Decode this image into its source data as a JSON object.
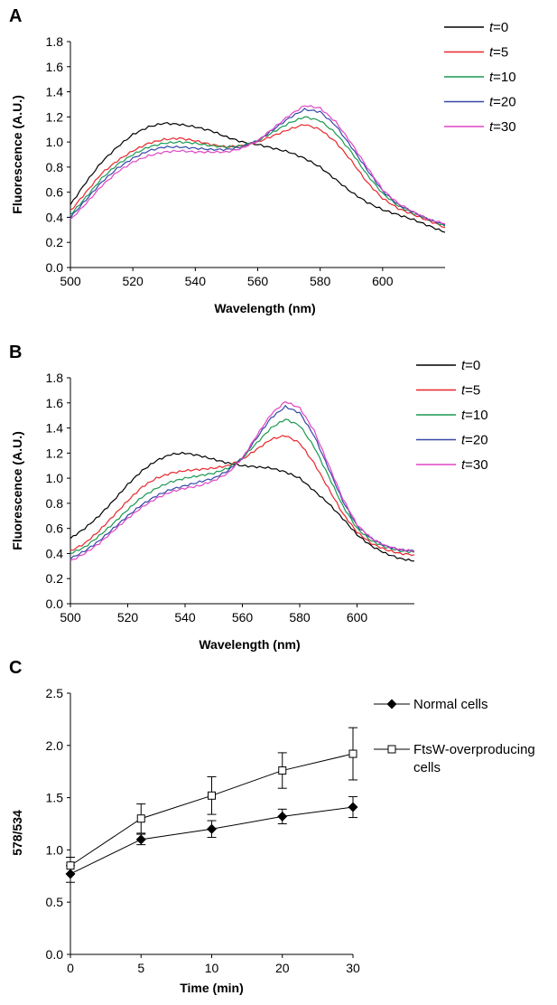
{
  "chart_data": [
    {
      "panel": "A",
      "type": "line",
      "xlabel": "Wavelength (nm)",
      "ylabel": "Fluorescence (A.U.)",
      "xlim": [
        500,
        620
      ],
      "ylim": [
        0,
        1.8
      ],
      "xticks": [
        500,
        520,
        540,
        560,
        580,
        600
      ],
      "yticks": [
        0.0,
        0.2,
        0.4,
        0.6,
        0.8,
        1.0,
        1.2,
        1.4,
        1.6,
        1.8
      ],
      "legend_position": "right",
      "x": [
        500,
        505,
        510,
        515,
        520,
        525,
        530,
        535,
        540,
        545,
        550,
        555,
        560,
        565,
        570,
        575,
        580,
        585,
        590,
        595,
        600,
        605,
        610,
        615,
        620
      ],
      "series": [
        {
          "label_prefix": "t",
          "label_value": "=0",
          "color": "#000000",
          "values": [
            0.5,
            0.68,
            0.84,
            0.96,
            1.06,
            1.12,
            1.15,
            1.14,
            1.12,
            1.09,
            1.04,
            1.0,
            0.98,
            0.95,
            0.92,
            0.87,
            0.8,
            0.7,
            0.6,
            0.52,
            0.46,
            0.42,
            0.38,
            0.33,
            0.28
          ]
        },
        {
          "label_prefix": "t",
          "label_value": "=5",
          "color": "#e8262b",
          "values": [
            0.45,
            0.6,
            0.75,
            0.85,
            0.93,
            0.99,
            1.02,
            1.03,
            1.01,
            0.98,
            0.96,
            0.97,
            1.0,
            1.05,
            1.1,
            1.14,
            1.1,
            1.0,
            0.85,
            0.68,
            0.55,
            0.47,
            0.42,
            0.37,
            0.32
          ]
        },
        {
          "label_prefix": "t",
          "label_value": "=10",
          "color": "#1a9850",
          "values": [
            0.42,
            0.56,
            0.71,
            0.82,
            0.9,
            0.96,
            0.99,
            1.0,
            0.99,
            0.97,
            0.96,
            0.97,
            1.01,
            1.08,
            1.15,
            1.2,
            1.17,
            1.07,
            0.92,
            0.74,
            0.59,
            0.49,
            0.43,
            0.38,
            0.33
          ]
        },
        {
          "label_prefix": "t",
          "label_value": "=20",
          "color": "#3548a8",
          "values": [
            0.4,
            0.54,
            0.68,
            0.79,
            0.87,
            0.93,
            0.96,
            0.96,
            0.95,
            0.94,
            0.94,
            0.96,
            1.01,
            1.1,
            1.19,
            1.26,
            1.24,
            1.13,
            0.96,
            0.78,
            0.61,
            0.5,
            0.44,
            0.38,
            0.34
          ]
        },
        {
          "label_prefix": "t",
          "label_value": "=30",
          "color": "#e045c2",
          "values": [
            0.38,
            0.51,
            0.65,
            0.76,
            0.84,
            0.89,
            0.92,
            0.93,
            0.92,
            0.92,
            0.92,
            0.95,
            1.01,
            1.11,
            1.21,
            1.29,
            1.27,
            1.16,
            0.99,
            0.8,
            0.62,
            0.51,
            0.44,
            0.38,
            0.35
          ]
        }
      ]
    },
    {
      "panel": "B",
      "type": "line",
      "xlabel": "Wavelength (nm)",
      "ylabel": "Fluorescence (A.U.)",
      "xlim": [
        500,
        620
      ],
      "ylim": [
        0,
        1.8
      ],
      "xticks": [
        500,
        520,
        540,
        560,
        580,
        600
      ],
      "yticks": [
        0.0,
        0.2,
        0.4,
        0.6,
        0.8,
        1.0,
        1.2,
        1.4,
        1.6,
        1.8
      ],
      "legend_position": "right",
      "x": [
        500,
        505,
        510,
        515,
        520,
        525,
        530,
        535,
        540,
        545,
        550,
        555,
        560,
        565,
        570,
        575,
        580,
        585,
        590,
        595,
        600,
        605,
        610,
        615,
        620
      ],
      "series": [
        {
          "label_prefix": "t",
          "label_value": "=0",
          "color": "#000000",
          "values": [
            0.52,
            0.6,
            0.7,
            0.82,
            0.95,
            1.06,
            1.14,
            1.19,
            1.2,
            1.18,
            1.15,
            1.12,
            1.1,
            1.09,
            1.08,
            1.05,
            1.0,
            0.9,
            0.8,
            0.68,
            0.55,
            0.46,
            0.4,
            0.36,
            0.34
          ]
        },
        {
          "label_prefix": "t",
          "label_value": "=5",
          "color": "#e8262b",
          "values": [
            0.42,
            0.48,
            0.58,
            0.7,
            0.82,
            0.93,
            1.0,
            1.04,
            1.06,
            1.07,
            1.08,
            1.1,
            1.15,
            1.23,
            1.31,
            1.34,
            1.28,
            1.12,
            0.92,
            0.72,
            0.57,
            0.48,
            0.43,
            0.4,
            0.39
          ]
        },
        {
          "label_prefix": "t",
          "label_value": "=10",
          "color": "#1a9850",
          "values": [
            0.4,
            0.45,
            0.54,
            0.64,
            0.75,
            0.85,
            0.92,
            0.97,
            1.0,
            1.02,
            1.04,
            1.08,
            1.16,
            1.28,
            1.4,
            1.47,
            1.42,
            1.25,
            1.02,
            0.78,
            0.6,
            0.5,
            0.45,
            0.42,
            0.41
          ]
        },
        {
          "label_prefix": "t",
          "label_value": "=20",
          "color": "#3548a8",
          "values": [
            0.36,
            0.42,
            0.5,
            0.6,
            0.7,
            0.79,
            0.86,
            0.91,
            0.94,
            0.97,
            1.0,
            1.06,
            1.16,
            1.32,
            1.48,
            1.57,
            1.52,
            1.34,
            1.08,
            0.82,
            0.62,
            0.52,
            0.46,
            0.43,
            0.42
          ]
        },
        {
          "label_prefix": "t",
          "label_value": "=30",
          "color": "#e045c2",
          "values": [
            0.34,
            0.4,
            0.48,
            0.58,
            0.68,
            0.77,
            0.84,
            0.89,
            0.92,
            0.94,
            0.98,
            1.04,
            1.16,
            1.34,
            1.51,
            1.61,
            1.56,
            1.38,
            1.11,
            0.84,
            0.63,
            0.52,
            0.46,
            0.43,
            0.42
          ]
        }
      ]
    },
    {
      "panel": "C",
      "type": "line",
      "xlabel": "Time (min)",
      "ylabel": "578/534",
      "ylim": [
        0,
        2.5
      ],
      "categories": [
        "0",
        "5",
        "10",
        "20",
        "30"
      ],
      "yticks": [
        0.0,
        0.5,
        1.0,
        1.5,
        2.0,
        2.5
      ],
      "legend_position": "right",
      "series": [
        {
          "name": "Normal cells",
          "marker": "diamond-filled",
          "values": [
            0.77,
            1.1,
            1.2,
            1.32,
            1.41
          ],
          "errors": [
            0.08,
            0.05,
            0.08,
            0.07,
            0.1
          ]
        },
        {
          "name": "FtsW-overproducing cells",
          "name_lines": [
            "FtsW-overproducing",
            "cells"
          ],
          "marker": "square-open",
          "values": [
            0.85,
            1.3,
            1.52,
            1.76,
            1.92
          ],
          "errors": [
            0.08,
            0.14,
            0.18,
            0.17,
            0.25
          ]
        }
      ]
    }
  ]
}
